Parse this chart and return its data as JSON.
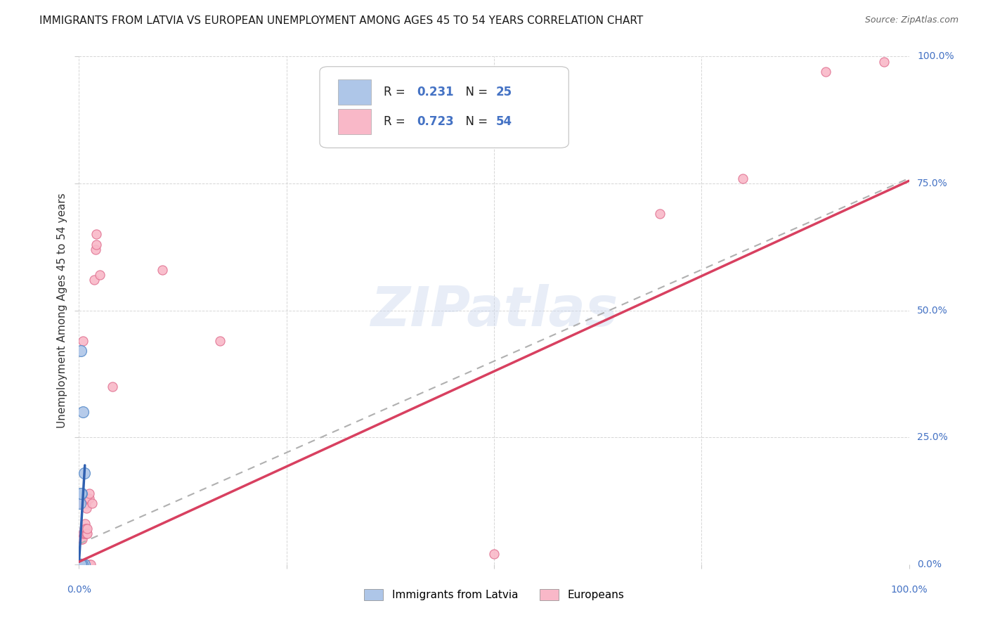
{
  "title": "IMMIGRANTS FROM LATVIA VS EUROPEAN UNEMPLOYMENT AMONG AGES 45 TO 54 YEARS CORRELATION CHART",
  "source": "Source: ZipAtlas.com",
  "ylabel": "Unemployment Among Ages 45 to 54 years",
  "xlim": [
    0,
    1.0
  ],
  "ylim": [
    0,
    1.0
  ],
  "xticks": [
    0.0,
    0.25,
    0.5,
    0.75,
    1.0
  ],
  "yticks": [
    0.0,
    0.25,
    0.5,
    0.75,
    1.0
  ],
  "xticklabels": [
    "0.0%",
    "",
    "",
    "",
    "100.0%"
  ],
  "yticklabels": [
    "0.0%",
    "25.0%",
    "50.0%",
    "75.0%",
    "100.0%"
  ],
  "tick_color": "#4472c4",
  "background_color": "#ffffff",
  "legend_entries": [
    {
      "color": "#aec6e8",
      "r_val": "0.231",
      "n_val": "25"
    },
    {
      "color": "#f9b8c8",
      "r_val": "0.723",
      "n_val": "54"
    }
  ],
  "legend_bottom": [
    {
      "label": "Immigrants from Latvia",
      "color": "#aec6e8"
    },
    {
      "label": "Europeans",
      "color": "#f9b8c8"
    }
  ],
  "latvia_scatter": [
    [
      0.002,
      0.42
    ],
    [
      0.005,
      0.3
    ],
    [
      0.001,
      0.0
    ],
    [
      0.002,
      0.0
    ],
    [
      0.001,
      0.12
    ],
    [
      0.003,
      0.14
    ],
    [
      0.001,
      0.0
    ],
    [
      0.001,
      0.0
    ],
    [
      0.002,
      0.0
    ],
    [
      0.001,
      0.0
    ],
    [
      0.001,
      0.0
    ],
    [
      0.003,
      0.0
    ],
    [
      0.002,
      0.0
    ],
    [
      0.003,
      0.0
    ],
    [
      0.001,
      0.0
    ],
    [
      0.002,
      0.0
    ],
    [
      0.003,
      0.0
    ],
    [
      0.004,
      0.0
    ],
    [
      0.002,
      0.14
    ],
    [
      0.001,
      0.0
    ],
    [
      0.006,
      0.0
    ],
    [
      0.004,
      0.0
    ],
    [
      0.002,
      0.0
    ],
    [
      0.006,
      0.18
    ],
    [
      0.002,
      0.0
    ]
  ],
  "europeans_scatter": [
    [
      0.0,
      0.0
    ],
    [
      0.001,
      0.0
    ],
    [
      0.001,
      0.0
    ],
    [
      0.002,
      0.0
    ],
    [
      0.001,
      0.0
    ],
    [
      0.001,
      0.0
    ],
    [
      0.002,
      0.0
    ],
    [
      0.003,
      0.0
    ],
    [
      0.002,
      0.0
    ],
    [
      0.003,
      0.0
    ],
    [
      0.004,
      0.0
    ],
    [
      0.003,
      0.05
    ],
    [
      0.002,
      0.0
    ],
    [
      0.004,
      0.0
    ],
    [
      0.004,
      0.05
    ],
    [
      0.005,
      0.0
    ],
    [
      0.003,
      0.0
    ],
    [
      0.003,
      0.12
    ],
    [
      0.002,
      0.0
    ],
    [
      0.005,
      0.0
    ],
    [
      0.004,
      0.0
    ],
    [
      0.006,
      0.0
    ],
    [
      0.005,
      0.0
    ],
    [
      0.005,
      0.06
    ],
    [
      0.006,
      0.07
    ],
    [
      0.007,
      0.08
    ],
    [
      0.007,
      0.0
    ],
    [
      0.007,
      0.06
    ],
    [
      0.008,
      0.07
    ],
    [
      0.008,
      0.12
    ],
    [
      0.005,
      0.44
    ],
    [
      0.009,
      0.11
    ],
    [
      0.009,
      0.06
    ],
    [
      0.01,
      0.06
    ],
    [
      0.01,
      0.07
    ],
    [
      0.009,
      0.13
    ],
    [
      0.012,
      0.13
    ],
    [
      0.012,
      0.14
    ],
    [
      0.012,
      0.0
    ],
    [
      0.014,
      0.0
    ],
    [
      0.016,
      0.12
    ],
    [
      0.018,
      0.56
    ],
    [
      0.02,
      0.62
    ],
    [
      0.021,
      0.65
    ],
    [
      0.021,
      0.63
    ],
    [
      0.025,
      0.57
    ],
    [
      0.04,
      0.35
    ],
    [
      0.1,
      0.58
    ],
    [
      0.17,
      0.44
    ],
    [
      0.5,
      0.02
    ],
    [
      0.7,
      0.69
    ],
    [
      0.8,
      0.76
    ],
    [
      0.9,
      0.97
    ],
    [
      0.97,
      0.99
    ]
  ],
  "latvia_trendline": {
    "x": [
      0.0,
      0.007
    ],
    "y": [
      0.005,
      0.195
    ]
  },
  "europeans_trendline": {
    "x": [
      0.0,
      1.0
    ],
    "y": [
      0.005,
      0.755
    ]
  },
  "dashed_trendline": {
    "x": [
      0.0,
      1.0
    ],
    "y": [
      0.04,
      0.76
    ]
  },
  "scatter_size_latvia": 130,
  "scatter_size_europeans": 90,
  "scatter_color_latvia": "#aec6e8",
  "scatter_edge_latvia": "#5b8ecb",
  "scatter_color_europeans": "#f9b8c8",
  "scatter_edge_europeans": "#e07090",
  "trendline_color_latvia": "#3060b0",
  "trendline_color_europeans": "#d84060",
  "dashed_line_color": "#b0b0b0",
  "grid_color": "#cccccc",
  "title_fontsize": 11,
  "axis_label_fontsize": 11,
  "tick_fontsize": 10,
  "source_fontsize": 9
}
